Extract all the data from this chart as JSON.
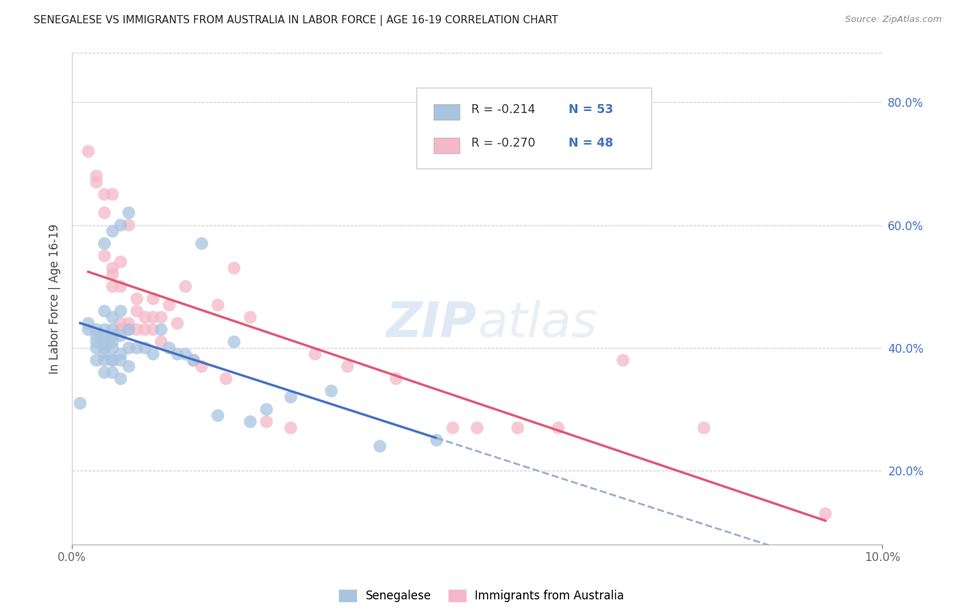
{
  "title": "SENEGALESE VS IMMIGRANTS FROM AUSTRALIA IN LABOR FORCE | AGE 16-19 CORRELATION CHART",
  "source": "Source: ZipAtlas.com",
  "xlabel": "",
  "ylabel": "In Labor Force | Age 16-19",
  "xlim": [
    0.0,
    0.1
  ],
  "ylim": [
    0.08,
    0.88
  ],
  "ytick_values": [
    0.2,
    0.4,
    0.6,
    0.8
  ],
  "xtick_labels": [
    "0.0%",
    "10.0%"
  ],
  "xtick_values": [
    0.0,
    0.1
  ],
  "right_ytick_labels": [
    "20.0%",
    "40.0%",
    "60.0%",
    "80.0%"
  ],
  "right_ytick_values": [
    0.2,
    0.4,
    0.6,
    0.8
  ],
  "senegalese_color": "#a8c4e0",
  "australia_color": "#f4b8c8",
  "line_blue": "#4472c4",
  "line_pink": "#e05878",
  "line_dashed_color": "#9aafd0",
  "legend_R_blue": "-0.214",
  "legend_N_blue": "53",
  "legend_R_pink": "-0.270",
  "legend_N_pink": "48",
  "watermark_zip": "ZIP",
  "watermark_atlas": "atlas",
  "senegalese_x": [
    0.001,
    0.002,
    0.002,
    0.003,
    0.003,
    0.003,
    0.003,
    0.003,
    0.004,
    0.004,
    0.004,
    0.004,
    0.004,
    0.004,
    0.004,
    0.004,
    0.004,
    0.005,
    0.005,
    0.005,
    0.005,
    0.005,
    0.005,
    0.005,
    0.005,
    0.005,
    0.006,
    0.006,
    0.006,
    0.006,
    0.006,
    0.006,
    0.007,
    0.007,
    0.007,
    0.007,
    0.008,
    0.009,
    0.01,
    0.011,
    0.012,
    0.013,
    0.014,
    0.015,
    0.016,
    0.018,
    0.02,
    0.022,
    0.024,
    0.027,
    0.032,
    0.038,
    0.045
  ],
  "senegalese_y": [
    0.31,
    0.43,
    0.44,
    0.38,
    0.4,
    0.41,
    0.42,
    0.43,
    0.36,
    0.38,
    0.39,
    0.4,
    0.41,
    0.42,
    0.43,
    0.46,
    0.57,
    0.36,
    0.38,
    0.38,
    0.4,
    0.41,
    0.42,
    0.43,
    0.45,
    0.59,
    0.35,
    0.38,
    0.39,
    0.42,
    0.46,
    0.6,
    0.37,
    0.4,
    0.43,
    0.62,
    0.4,
    0.4,
    0.39,
    0.43,
    0.4,
    0.39,
    0.39,
    0.38,
    0.57,
    0.29,
    0.41,
    0.28,
    0.3,
    0.32,
    0.33,
    0.24,
    0.25
  ],
  "australia_x": [
    0.002,
    0.003,
    0.003,
    0.004,
    0.004,
    0.004,
    0.005,
    0.005,
    0.005,
    0.005,
    0.006,
    0.006,
    0.006,
    0.006,
    0.007,
    0.007,
    0.007,
    0.008,
    0.008,
    0.008,
    0.009,
    0.009,
    0.01,
    0.01,
    0.01,
    0.011,
    0.011,
    0.012,
    0.013,
    0.014,
    0.015,
    0.016,
    0.018,
    0.019,
    0.02,
    0.022,
    0.024,
    0.027,
    0.03,
    0.034,
    0.04,
    0.047,
    0.05,
    0.055,
    0.06,
    0.068,
    0.078,
    0.093
  ],
  "australia_y": [
    0.72,
    0.67,
    0.68,
    0.55,
    0.62,
    0.65,
    0.5,
    0.52,
    0.53,
    0.65,
    0.43,
    0.44,
    0.5,
    0.54,
    0.43,
    0.44,
    0.6,
    0.43,
    0.46,
    0.48,
    0.43,
    0.45,
    0.43,
    0.45,
    0.48,
    0.41,
    0.45,
    0.47,
    0.44,
    0.5,
    0.38,
    0.37,
    0.47,
    0.35,
    0.53,
    0.45,
    0.28,
    0.27,
    0.39,
    0.37,
    0.35,
    0.27,
    0.27,
    0.27,
    0.27,
    0.38,
    0.27,
    0.13
  ]
}
